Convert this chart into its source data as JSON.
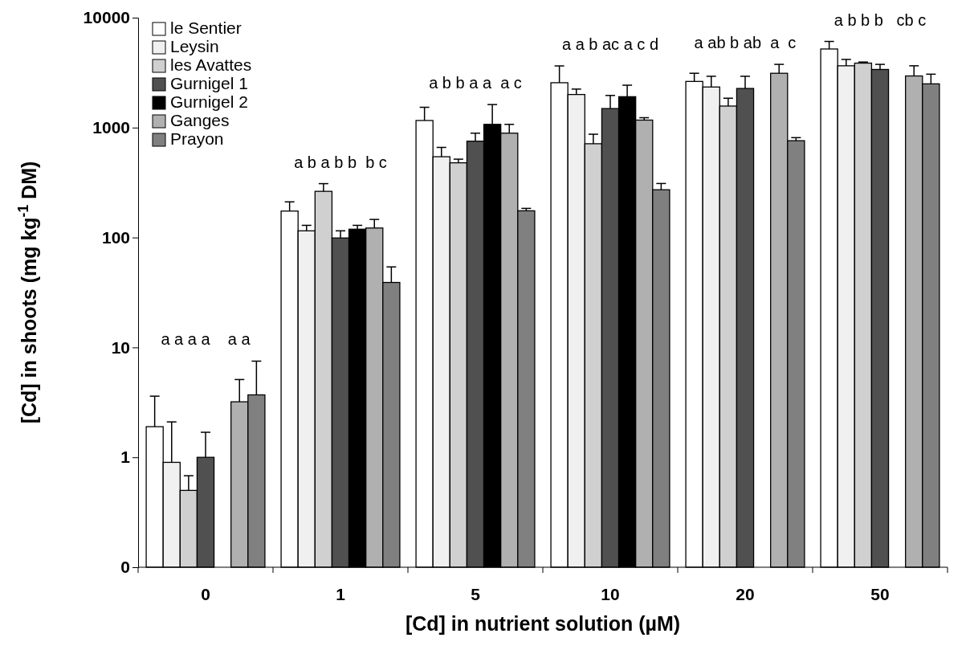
{
  "chart_data": {
    "type": "bar",
    "xlabel": "[Cd] in nutrient solution (µM)",
    "ylabel": "[Cd] in shoots (mg kg$^{-1}$ DM)",
    "categories": [
      "0",
      "1",
      "5",
      "10",
      "20",
      "50"
    ],
    "log": true,
    "ylim": [
      0.1,
      10000
    ],
    "yticks": [
      {
        "value": 0.1,
        "label": "0"
      },
      1,
      10,
      100,
      1000,
      10000
    ],
    "legend": "top left",
    "series": [
      {
        "name": "le Sentier",
        "color": "#ffffff",
        "values": [
          1.9,
          174,
          1160,
          2560,
          2630,
          5190
        ],
        "errors": [
          [
            1.9,
            3.6
          ],
          [
            174,
            211
          ],
          [
            1160,
            1530
          ],
          [
            2560,
            3640
          ],
          [
            2630,
            3120
          ],
          [
            5190,
            6080
          ]
        ]
      },
      {
        "name": "Leysin",
        "color": "#f0f0f0",
        "values": [
          0.9,
          115,
          543,
          2000,
          2340,
          3650
        ],
        "errors": [
          [
            0.9,
            2.1
          ],
          [
            115,
            129
          ],
          [
            543,
            660
          ],
          [
            2000,
            2240
          ],
          [
            2340,
            2930
          ],
          [
            3650,
            4170
          ]
        ]
      },
      {
        "name": "les Avattes",
        "color": "#d0d0d0",
        "values": [
          0.5,
          263,
          478,
          713,
          1570,
          3860
        ],
        "errors": [
          [
            0.5,
            0.68
          ],
          [
            263,
            309
          ],
          [
            478,
            516
          ],
          [
            713,
            870
          ],
          [
            1570,
            1850
          ],
          [
            3860,
            3950
          ]
        ]
      },
      {
        "name": "Gurnigel 1",
        "color": "#505050",
        "values": [
          1.0,
          99,
          752,
          1490,
          2270,
          3380
        ],
        "errors": [
          [
            1.0,
            1.69
          ],
          [
            99,
            115
          ],
          [
            752,
            890
          ],
          [
            1490,
            1960
          ],
          [
            2270,
            2930
          ],
          [
            3380,
            3760
          ]
        ]
      },
      {
        "name": "Gurnigel 2",
        "color": "#000000",
        "values": [
          null,
          119,
          1070,
          1910,
          null,
          null
        ],
        "errors": [
          null,
          [
            119,
            129
          ],
          [
            1070,
            1620
          ],
          [
            1910,
            2430
          ],
          null,
          null
        ]
      },
      {
        "name": "Ganges",
        "color": "#b0b0b0",
        "values": [
          3.2,
          122,
          890,
          1170,
          3120,
          2950
        ],
        "errors": [
          [
            3.2,
            5.1
          ],
          [
            122,
            146
          ],
          [
            890,
            1070
          ],
          [
            1170,
            1230
          ],
          [
            3120,
            3760
          ],
          [
            2950,
            3650
          ]
        ]
      },
      {
        "name": "Prayon",
        "color": "#808080",
        "values": [
          3.7,
          39,
          175,
          272,
          760,
          2500
        ],
        "errors": [
          [
            3.7,
            7.5
          ],
          [
            39,
            54
          ],
          [
            175,
            184
          ],
          [
            272,
            310
          ],
          [
            760,
            810
          ],
          [
            2500,
            3060
          ]
        ]
      }
    ],
    "annotations": [
      "a a a a    a a",
      "a b a b b  b c",
      "a b b a a  a c",
      "a a b ac a c d",
      "a ab b ab  a  c",
      "a b b b   cb c"
    ]
  }
}
